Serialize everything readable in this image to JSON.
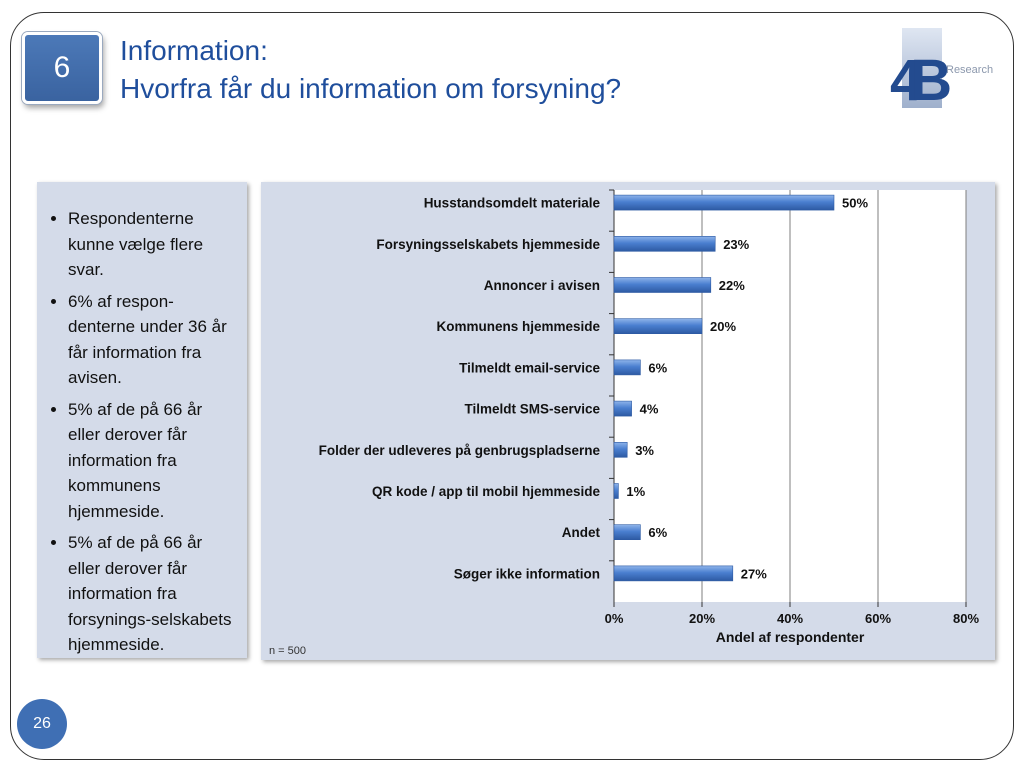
{
  "slide_badge": "6",
  "title": {
    "line1": "Information:",
    "line2": "Hvorfra får du information om forsyning?"
  },
  "logo": {
    "text": "Research",
    "mark": "4B"
  },
  "bullets": [
    "Respondenterne kunne vælge flere svar.",
    "6% af respon-denterne under 36 år får information fra avisen.",
    "5% af de på 66 år eller derover får information fra kommunens hjemmeside.",
    "5% af de på 66 år eller derover får information fra forsynings-selskabets hjemmeside."
  ],
  "page_number": "26",
  "colors": {
    "bar": "#4a7fd0",
    "title": "#1f4e9c",
    "panel": "#d4dbe9"
  },
  "chart_data": {
    "type": "bar",
    "orientation": "horizontal",
    "categories": [
      "Husstandsomdelt materiale",
      "Forsyningsselskabets hjemmeside",
      "Annoncer i avisen",
      "Kommunens hjemmeside",
      "Tilmeldt email-service",
      "Tilmeldt SMS-service",
      "Folder der udleveres på genbrugspladserne",
      "QR kode / app til mobil hjemmeside",
      "Andet",
      "Søger ikke information"
    ],
    "values": [
      50,
      23,
      22,
      20,
      6,
      4,
      3,
      1,
      6,
      27
    ],
    "value_labels": [
      "50%",
      "23%",
      "22%",
      "20%",
      "6%",
      "4%",
      "3%",
      "1%",
      "6%",
      "27%"
    ],
    "xlim": [
      0,
      80
    ],
    "xticks": [
      "0%",
      "20%",
      "40%",
      "60%",
      "80%"
    ],
    "xlabel": "Andel af respondenter",
    "note": "n = 500",
    "grid": "vertical"
  }
}
